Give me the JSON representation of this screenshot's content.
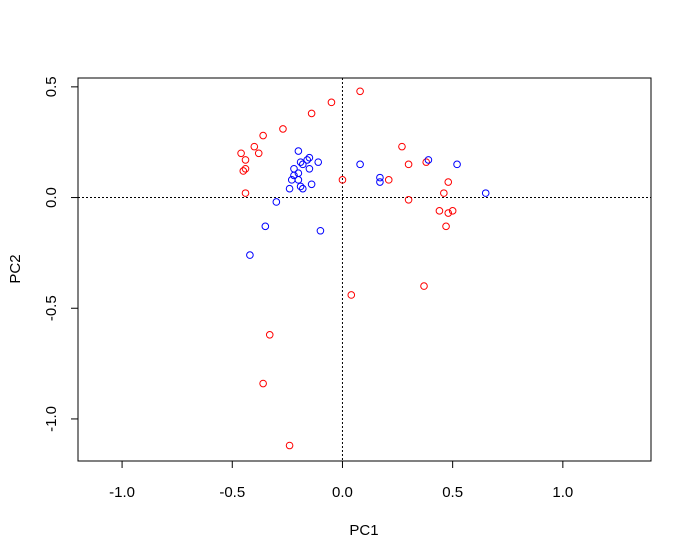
{
  "chart_data": {
    "type": "scatter",
    "title": "",
    "xlabel": "PC1",
    "ylabel": "PC2",
    "xlim": [
      -1.2,
      1.4
    ],
    "ylim": [
      -1.19,
      0.54
    ],
    "xticks": [
      -1.0,
      -0.5,
      0.0,
      0.5,
      1.0
    ],
    "xtick_labels": [
      "-1.0",
      "-0.5",
      "0.0",
      "0.5",
      "1.0"
    ],
    "yticks": [
      -1.0,
      -0.5,
      0.0,
      0.5
    ],
    "ytick_labels": [
      "-1.0",
      "-0.5",
      "0.0",
      "0.5"
    ],
    "reference_lines": {
      "x": 0,
      "y": 0,
      "style": "dotted"
    },
    "grid": false,
    "marker": "open-circle",
    "series": [
      {
        "color": "#ff0000",
        "points": [
          [
            0.08,
            0.48
          ],
          [
            -0.05,
            0.43
          ],
          [
            -0.14,
            0.38
          ],
          [
            -0.27,
            0.31
          ],
          [
            -0.36,
            0.28
          ],
          [
            -0.4,
            0.23
          ],
          [
            -0.46,
            0.2
          ],
          [
            -0.38,
            0.2
          ],
          [
            -0.44,
            0.17
          ],
          [
            -0.44,
            0.13
          ],
          [
            -0.45,
            0.12
          ],
          [
            -0.44,
            0.02
          ],
          [
            0.27,
            0.23
          ],
          [
            0.3,
            0.15
          ],
          [
            0.38,
            0.16
          ],
          [
            0.21,
            0.08
          ],
          [
            0.0,
            0.08
          ],
          [
            0.48,
            0.07
          ],
          [
            0.46,
            0.02
          ],
          [
            0.3,
            -0.01
          ],
          [
            0.44,
            -0.06
          ],
          [
            0.5,
            -0.06
          ],
          [
            0.48,
            -0.07
          ],
          [
            0.47,
            -0.13
          ],
          [
            0.37,
            -0.4
          ],
          [
            0.04,
            -0.44
          ],
          [
            -0.33,
            -0.62
          ],
          [
            -0.36,
            -0.84
          ],
          [
            -0.24,
            -1.12
          ]
        ]
      },
      {
        "color": "#0000ff",
        "points": [
          [
            -0.2,
            0.21
          ],
          [
            -0.15,
            0.18
          ],
          [
            -0.16,
            0.17
          ],
          [
            -0.19,
            0.16
          ],
          [
            -0.11,
            0.16
          ],
          [
            -0.18,
            0.15
          ],
          [
            -0.22,
            0.13
          ],
          [
            -0.15,
            0.13
          ],
          [
            -0.2,
            0.11
          ],
          [
            -0.22,
            0.1
          ],
          [
            -0.2,
            0.08
          ],
          [
            -0.23,
            0.08
          ],
          [
            -0.14,
            0.06
          ],
          [
            -0.19,
            0.05
          ],
          [
            -0.18,
            0.04
          ],
          [
            -0.24,
            0.04
          ],
          [
            -0.3,
            -0.02
          ],
          [
            0.08,
            0.15
          ],
          [
            0.39,
            0.17
          ],
          [
            0.52,
            0.15
          ],
          [
            0.17,
            0.09
          ],
          [
            0.17,
            0.07
          ],
          [
            0.65,
            0.02
          ],
          [
            -0.35,
            -0.13
          ],
          [
            -0.1,
            -0.15
          ],
          [
            -0.42,
            -0.26
          ]
        ]
      }
    ]
  }
}
